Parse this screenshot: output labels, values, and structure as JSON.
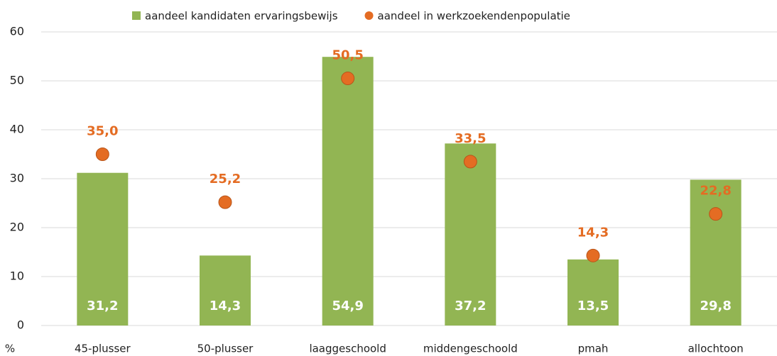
{
  "chart_data": {
    "type": "bar",
    "y_label": "%",
    "categories": [
      "45-plusser",
      "50-plusser",
      "laaggeschoold",
      "middengeschoold",
      "pmah",
      "allochtoon"
    ],
    "series": [
      {
        "name": "aandeel kandidaten ervaringsbewijs",
        "type": "bar",
        "color": "#92b553",
        "values": [
          31.2,
          14.3,
          54.9,
          37.2,
          13.5,
          29.8
        ],
        "value_labels": [
          "31,2",
          "14,3",
          "54,9",
          "37,2",
          "13,5",
          "29,8"
        ]
      },
      {
        "name": "aandeel in werkzoekendenpopulatie",
        "type": "scatter",
        "color": "#e46c23",
        "values": [
          35.0,
          25.2,
          50.5,
          33.5,
          14.3,
          22.8
        ],
        "value_labels": [
          "35,0",
          "25,2",
          "50,5",
          "33,5",
          "14,3",
          "22,8"
        ]
      }
    ],
    "ylim": [
      0,
      60
    ],
    "yticks": [
      0,
      10,
      20,
      30,
      40,
      50,
      60
    ],
    "grid": true,
    "legend": "top"
  }
}
